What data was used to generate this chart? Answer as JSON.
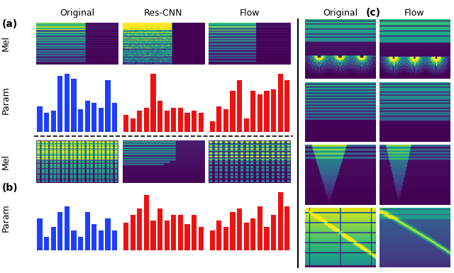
{
  "title_a": "(a)",
  "title_b": "(b)",
  "title_c": "(c)",
  "col_labels_left": [
    "Original",
    "Res-CNN",
    "Flow"
  ],
  "col_labels_right": [
    "Original",
    "Flow"
  ],
  "blue_color": "#1f3fff",
  "red_color": "#ee1111",
  "bar_a_blue": [
    0.42,
    0.32,
    0.35,
    0.92,
    0.95,
    0.88,
    0.38,
    0.52,
    0.48,
    0.4,
    0.85,
    0.48
  ],
  "bar_a_red1": [
    0.28,
    0.22,
    0.35,
    0.4,
    0.95,
    0.52,
    0.35,
    0.4,
    0.4,
    0.32,
    0.35,
    0.32
  ],
  "bar_a_red2": [
    0.18,
    0.42,
    0.38,
    0.68,
    0.85,
    0.22,
    0.68,
    0.62,
    0.68,
    0.7,
    0.95,
    0.85
  ],
  "bar_b_blue": [
    0.52,
    0.22,
    0.38,
    0.62,
    0.72,
    0.32,
    0.22,
    0.62,
    0.42,
    0.32,
    0.52,
    0.32
  ],
  "bar_b_red1": [
    0.45,
    0.58,
    0.68,
    0.9,
    0.48,
    0.68,
    0.48,
    0.58,
    0.58,
    0.42,
    0.58,
    0.38
  ],
  "bar_b_red2": [
    0.32,
    0.48,
    0.38,
    0.62,
    0.68,
    0.45,
    0.52,
    0.72,
    0.38,
    0.58,
    0.95,
    0.72
  ]
}
